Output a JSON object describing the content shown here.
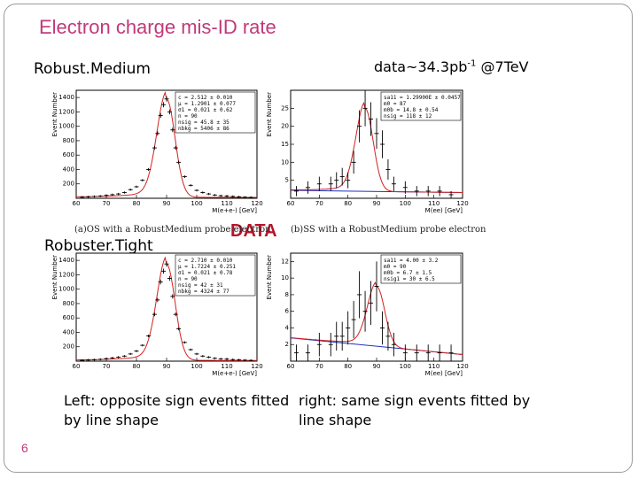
{
  "slide": {
    "title": "Electron charge mis-ID rate",
    "label_robust_medium": "Robust.Medium",
    "label_robuster_tight": "Robuster.Tight",
    "data_lumi": "data~34.3pb",
    "data_lumi_sup": "-1",
    "data_energy": " @7TeV",
    "big_label": "DATA",
    "subtitle_os": "(a)OS with a RobustMedium probe electron",
    "subtitle_ss": "(b)SS with a RobustMedium probe electron",
    "caption_left": "Left: opposite sign events fitted by line shape",
    "caption_right": "right: same sign events fitted by line shape",
    "page_number": "6"
  },
  "colors": {
    "title": "#c0397a",
    "big_label": "#b3162b",
    "fit_curve": "#d42020",
    "background_line": "#2030c0",
    "points": "#000000"
  },
  "chart_data": [
    {
      "id": "os-medium",
      "type": "scatter",
      "ylabel": "Event Number",
      "xlabel": "M(e+e-) [GeV]",
      "xlim": [
        60,
        120
      ],
      "ylim": [
        0,
        1500
      ],
      "xticks": [
        60,
        70,
        80,
        90,
        100,
        110,
        120
      ],
      "yticks": [
        200,
        400,
        600,
        800,
        1000,
        1200,
        1400
      ],
      "x": [
        62,
        64,
        66,
        68,
        70,
        72,
        74,
        76,
        78,
        80,
        82,
        84,
        86,
        87,
        88,
        89,
        90,
        91,
        92,
        93,
        94,
        96,
        98,
        100,
        102,
        104,
        106,
        108,
        110,
        112,
        114,
        116,
        118
      ],
      "y": [
        15,
        20,
        25,
        30,
        40,
        50,
        60,
        80,
        120,
        160,
        250,
        400,
        700,
        900,
        1150,
        1300,
        1380,
        1200,
        950,
        700,
        500,
        300,
        180,
        110,
        80,
        60,
        45,
        35,
        30,
        25,
        20,
        15,
        12
      ],
      "stats": [
        "c = 2.512 ± 0.010",
        "μ = 1.2901 ± 0.077",
        "σ1 = 0.021 ± 0.62",
        "n = 90",
        "nsig = 45.8 ± 35",
        "nbkg = 5406 ± 86"
      ],
      "has_background_line": false
    },
    {
      "id": "ss-medium",
      "type": "scatter",
      "ylabel": "Event Number",
      "xlabel": "M(ee) [GeV]",
      "xlim": [
        60,
        120
      ],
      "ylim": [
        0,
        30
      ],
      "xticks": [
        60,
        70,
        80,
        90,
        100,
        110,
        120
      ],
      "yticks": [
        5,
        10,
        15,
        20,
        25
      ],
      "x": [
        62,
        66,
        70,
        74,
        76,
        78,
        80,
        82,
        84,
        86,
        88,
        90,
        92,
        94,
        96,
        100,
        104,
        108,
        112,
        116
      ],
      "y": [
        2,
        3,
        4,
        4,
        5,
        6,
        5,
        10,
        20,
        25,
        22,
        18,
        15,
        8,
        4,
        3,
        2,
        2,
        2,
        1
      ],
      "stats": [
        "sa11 = 1.29900E ± 0.0457",
        "m0 = 87",
        "m0b = 14.8 ± 0.54",
        "nsig = 118 ± 12"
      ],
      "has_background_line": true,
      "background": [
        2.2,
        1.6
      ]
    },
    {
      "id": "os-tight",
      "type": "scatter",
      "ylabel": "Event Number",
      "xlabel": "M(e+e-) [GeV]",
      "xlim": [
        60,
        120
      ],
      "ylim": [
        0,
        1500
      ],
      "xticks": [
        60,
        70,
        80,
        90,
        100,
        110,
        120
      ],
      "yticks": [
        200,
        400,
        600,
        800,
        1000,
        1200,
        1400
      ],
      "x": [
        62,
        64,
        66,
        68,
        70,
        72,
        74,
        76,
        78,
        80,
        82,
        84,
        86,
        87,
        88,
        89,
        90,
        91,
        92,
        93,
        94,
        96,
        98,
        100,
        102,
        104,
        106,
        108,
        110,
        112,
        114,
        116,
        118
      ],
      "y": [
        12,
        15,
        20,
        25,
        35,
        45,
        55,
        70,
        100,
        140,
        220,
        350,
        650,
        850,
        1100,
        1250,
        1350,
        1150,
        900,
        650,
        450,
        260,
        160,
        100,
        70,
        55,
        40,
        32,
        28,
        22,
        18,
        14,
        10
      ],
      "stats": [
        "c = 2.710 ± 0.010",
        "μ = 1.7224 ± 0.251",
        "σ1 = 0.021 ± 0.78",
        "n = 90",
        "nsig = 42 ± 31",
        "nbkg = 4324 ± 77"
      ],
      "has_background_line": false
    },
    {
      "id": "ss-tight",
      "type": "scatter",
      "ylabel": "Event Number",
      "xlabel": "M(ee) [GeV]",
      "xlim": [
        60,
        120
      ],
      "ylim": [
        0,
        13
      ],
      "xticks": [
        60,
        70,
        80,
        90,
        100,
        110,
        120
      ],
      "yticks": [
        2,
        4,
        6,
        8,
        10,
        12
      ],
      "x": [
        62,
        66,
        70,
        74,
        76,
        78,
        80,
        82,
        84,
        86,
        88,
        90,
        92,
        94,
        96,
        100,
        104,
        108,
        112,
        116
      ],
      "y": [
        1,
        1,
        2,
        2,
        3,
        3,
        4,
        5,
        8,
        6,
        7,
        9,
        4,
        3,
        2,
        1,
        1,
        1,
        1,
        1
      ],
      "stats": [
        "sa11 = 4.00 ± 3.2",
        "m0 = 90",
        "m0b = 6.7 ± 1.5",
        "nsig1 = 30 ± 6.5"
      ],
      "has_background_line": true,
      "background": [
        2.8,
        0.8
      ]
    }
  ]
}
